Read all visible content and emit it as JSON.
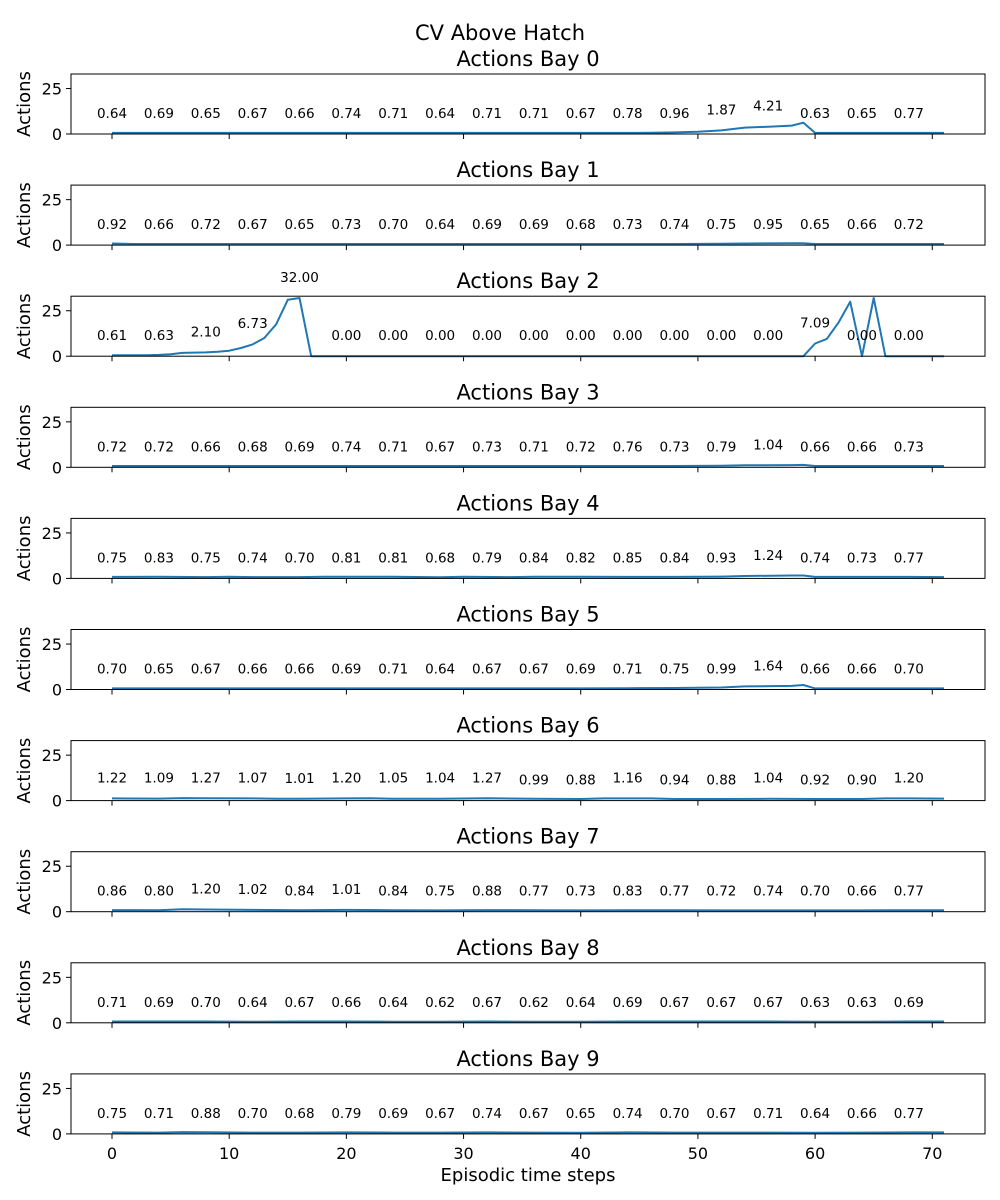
{
  "chart_data": {
    "type": "line",
    "title": "CV Above Hatch",
    "xlabel": "Episodic time steps",
    "ylabel": "Actions",
    "xlim": [
      -3.5,
      74.5
    ],
    "ylim": [
      0,
      33
    ],
    "xticks": [
      0,
      10,
      20,
      30,
      40,
      50,
      60,
      70
    ],
    "yticks": [
      0,
      25
    ],
    "annotation_x": [
      0,
      4,
      8,
      12,
      16,
      20,
      24,
      28,
      32,
      36,
      40,
      44,
      48,
      52,
      56,
      60,
      64,
      68
    ],
    "color": "#1f77b4",
    "panels": [
      {
        "title": "Actions Bay 0",
        "annotations": [
          "0.64",
          "0.69",
          "0.65",
          "0.67",
          "0.66",
          "0.74",
          "0.71",
          "0.64",
          "0.71",
          "0.71",
          "0.67",
          "0.78",
          "0.96",
          "1.87",
          "4.21",
          "0.63",
          "0.65",
          "0.77"
        ],
        "points": [
          [
            0,
            0.6
          ],
          [
            4,
            0.6
          ],
          [
            8,
            0.6
          ],
          [
            12,
            0.6
          ],
          [
            16,
            0.6
          ],
          [
            20,
            0.6
          ],
          [
            24,
            0.6
          ],
          [
            28,
            0.6
          ],
          [
            32,
            0.6
          ],
          [
            36,
            0.6
          ],
          [
            40,
            0.6
          ],
          [
            44,
            0.6
          ],
          [
            46,
            0.7
          ],
          [
            48,
            0.9
          ],
          [
            50,
            1.2
          ],
          [
            52,
            2.0
          ],
          [
            54,
            3.5
          ],
          [
            56,
            4.0
          ],
          [
            58,
            4.6
          ],
          [
            59,
            6.2
          ],
          [
            60,
            0.6
          ],
          [
            64,
            0.6
          ],
          [
            68,
            0.6
          ],
          [
            71,
            0.6
          ]
        ]
      },
      {
        "title": "Actions Bay 1",
        "annotations": [
          "0.92",
          "0.66",
          "0.72",
          "0.67",
          "0.65",
          "0.73",
          "0.70",
          "0.64",
          "0.69",
          "0.69",
          "0.68",
          "0.73",
          "0.74",
          "0.75",
          "0.95",
          "0.65",
          "0.66",
          "0.72"
        ],
        "points": [
          [
            0,
            0.9
          ],
          [
            2,
            0.6
          ],
          [
            4,
            0.6
          ],
          [
            8,
            0.6
          ],
          [
            12,
            0.6
          ],
          [
            16,
            0.6
          ],
          [
            20,
            0.6
          ],
          [
            24,
            0.6
          ],
          [
            28,
            0.6
          ],
          [
            32,
            0.6
          ],
          [
            36,
            0.6
          ],
          [
            40,
            0.6
          ],
          [
            44,
            0.6
          ],
          [
            48,
            0.6
          ],
          [
            52,
            0.7
          ],
          [
            54,
            0.9
          ],
          [
            58,
            1.0
          ],
          [
            59,
            1.0
          ],
          [
            60,
            0.6
          ],
          [
            64,
            0.6
          ],
          [
            68,
            0.6
          ],
          [
            71,
            0.6
          ]
        ]
      },
      {
        "title": "Actions Bay 2",
        "annotations": [
          "0.61",
          "0.63",
          "2.10",
          "6.73",
          "32.00",
          "0.00",
          "0.00",
          "0.00",
          "0.00",
          "0.00",
          "0.00",
          "0.00",
          "0.00",
          "0.00",
          "0.00",
          "7.09",
          "0.00",
          "0.00"
        ],
        "points": [
          [
            0,
            0.5
          ],
          [
            2,
            0.5
          ],
          [
            3,
            0.5
          ],
          [
            4,
            0.7
          ],
          [
            5,
            1.1
          ],
          [
            6,
            1.8
          ],
          [
            8,
            2.1
          ],
          [
            9,
            2.4
          ],
          [
            10,
            3.0
          ],
          [
            11,
            4.5
          ],
          [
            12,
            6.5
          ],
          [
            13,
            10
          ],
          [
            14,
            17.5
          ],
          [
            15,
            31
          ],
          [
            16,
            32
          ],
          [
            17,
            0
          ],
          [
            20,
            0
          ],
          [
            24,
            0
          ],
          [
            28,
            0
          ],
          [
            32,
            0
          ],
          [
            36,
            0
          ],
          [
            40,
            0
          ],
          [
            44,
            0
          ],
          [
            48,
            0
          ],
          [
            52,
            0
          ],
          [
            56,
            0
          ],
          [
            59,
            0
          ],
          [
            60,
            7
          ],
          [
            61,
            9.5
          ],
          [
            62,
            18.5
          ],
          [
            63,
            30
          ],
          [
            64,
            0
          ],
          [
            65,
            32
          ],
          [
            66,
            0
          ],
          [
            68,
            0
          ],
          [
            71,
            0
          ]
        ]
      },
      {
        "title": "Actions Bay 3",
        "annotations": [
          "0.72",
          "0.72",
          "0.66",
          "0.68",
          "0.69",
          "0.74",
          "0.71",
          "0.67",
          "0.73",
          "0.71",
          "0.72",
          "0.76",
          "0.73",
          "0.79",
          "1.04",
          "0.66",
          "0.66",
          "0.73"
        ],
        "points": [
          [
            0,
            0.7
          ],
          [
            4,
            0.7
          ],
          [
            8,
            0.7
          ],
          [
            12,
            0.7
          ],
          [
            16,
            0.7
          ],
          [
            20,
            0.7
          ],
          [
            24,
            0.7
          ],
          [
            28,
            0.7
          ],
          [
            32,
            0.7
          ],
          [
            36,
            0.7
          ],
          [
            40,
            0.7
          ],
          [
            44,
            0.7
          ],
          [
            48,
            0.7
          ],
          [
            52,
            0.8
          ],
          [
            54,
            1.1
          ],
          [
            58,
            1.2
          ],
          [
            59,
            1.3
          ],
          [
            60,
            0.7
          ],
          [
            64,
            0.7
          ],
          [
            68,
            0.7
          ],
          [
            71,
            0.7
          ]
        ]
      },
      {
        "title": "Actions Bay 4",
        "annotations": [
          "0.75",
          "0.83",
          "0.75",
          "0.74",
          "0.70",
          "0.81",
          "0.81",
          "0.68",
          "0.79",
          "0.84",
          "0.82",
          "0.85",
          "0.84",
          "0.93",
          "1.24",
          "0.74",
          "0.73",
          "0.77"
        ],
        "points": [
          [
            0,
            0.8
          ],
          [
            4,
            0.9
          ],
          [
            8,
            0.7
          ],
          [
            10,
            0.9
          ],
          [
            12,
            0.7
          ],
          [
            16,
            0.7
          ],
          [
            18,
            0.9
          ],
          [
            24,
            0.9
          ],
          [
            28,
            0.6
          ],
          [
            30,
            0.9
          ],
          [
            34,
            0.7
          ],
          [
            36,
            0.9
          ],
          [
            40,
            0.9
          ],
          [
            44,
            0.8
          ],
          [
            48,
            0.8
          ],
          [
            52,
            1.0
          ],
          [
            54,
            1.3
          ],
          [
            58,
            1.6
          ],
          [
            59,
            1.6
          ],
          [
            60,
            0.8
          ],
          [
            64,
            0.8
          ],
          [
            68,
            0.8
          ],
          [
            71,
            0.7
          ]
        ]
      },
      {
        "title": "Actions Bay 5",
        "annotations": [
          "0.70",
          "0.65",
          "0.67",
          "0.66",
          "0.66",
          "0.69",
          "0.71",
          "0.64",
          "0.67",
          "0.67",
          "0.69",
          "0.71",
          "0.75",
          "0.99",
          "1.64",
          "0.66",
          "0.66",
          "0.70"
        ],
        "points": [
          [
            0,
            0.6
          ],
          [
            4,
            0.6
          ],
          [
            8,
            0.6
          ],
          [
            12,
            0.6
          ],
          [
            16,
            0.6
          ],
          [
            20,
            0.6
          ],
          [
            24,
            0.6
          ],
          [
            28,
            0.6
          ],
          [
            32,
            0.6
          ],
          [
            36,
            0.6
          ],
          [
            40,
            0.6
          ],
          [
            44,
            0.7
          ],
          [
            48,
            0.8
          ],
          [
            52,
            1.1
          ],
          [
            54,
            1.7
          ],
          [
            58,
            2.0
          ],
          [
            59,
            2.5
          ],
          [
            60,
            0.6
          ],
          [
            64,
            0.6
          ],
          [
            68,
            0.6
          ],
          [
            71,
            0.6
          ]
        ]
      },
      {
        "title": "Actions Bay 6",
        "annotations": [
          "1.22",
          "1.09",
          "1.27",
          "1.07",
          "1.01",
          "1.20",
          "1.05",
          "1.04",
          "1.27",
          "0.99",
          "0.88",
          "1.16",
          "0.94",
          "0.88",
          "1.04",
          "0.92",
          "0.90",
          "1.20"
        ],
        "points": [
          [
            0,
            1.2
          ],
          [
            4,
            1.1
          ],
          [
            6,
            1.4
          ],
          [
            8,
            1.3
          ],
          [
            12,
            1.2
          ],
          [
            14,
            1.0
          ],
          [
            16,
            1.0
          ],
          [
            20,
            1.2
          ],
          [
            22,
            1.3
          ],
          [
            24,
            1.0
          ],
          [
            28,
            1.0
          ],
          [
            32,
            1.3
          ],
          [
            36,
            1.0
          ],
          [
            40,
            0.9
          ],
          [
            42,
            1.2
          ],
          [
            46,
            1.2
          ],
          [
            48,
            0.9
          ],
          [
            52,
            0.9
          ],
          [
            56,
            1.0
          ],
          [
            60,
            0.9
          ],
          [
            64,
            0.9
          ],
          [
            66,
            1.2
          ],
          [
            68,
            1.2
          ],
          [
            71,
            1.1
          ]
        ]
      },
      {
        "title": "Actions Bay 7",
        "annotations": [
          "0.86",
          "0.80",
          "1.20",
          "1.02",
          "0.84",
          "1.01",
          "0.84",
          "0.75",
          "0.88",
          "0.77",
          "0.73",
          "0.83",
          "0.77",
          "0.72",
          "0.74",
          "0.70",
          "0.66",
          "0.77"
        ],
        "points": [
          [
            0,
            0.9
          ],
          [
            4,
            0.8
          ],
          [
            6,
            1.3
          ],
          [
            8,
            1.2
          ],
          [
            12,
            1.0
          ],
          [
            16,
            0.8
          ],
          [
            20,
            1.0
          ],
          [
            24,
            0.8
          ],
          [
            28,
            0.7
          ],
          [
            32,
            0.9
          ],
          [
            36,
            0.8
          ],
          [
            40,
            0.7
          ],
          [
            44,
            0.8
          ],
          [
            48,
            0.8
          ],
          [
            52,
            0.7
          ],
          [
            56,
            0.7
          ],
          [
            60,
            0.7
          ],
          [
            64,
            0.7
          ],
          [
            68,
            0.8
          ],
          [
            71,
            0.8
          ]
        ]
      },
      {
        "title": "Actions Bay 8",
        "annotations": [
          "0.71",
          "0.69",
          "0.70",
          "0.64",
          "0.67",
          "0.66",
          "0.64",
          "0.62",
          "0.67",
          "0.62",
          "0.64",
          "0.69",
          "0.67",
          "0.67",
          "0.67",
          "0.63",
          "0.63",
          "0.69"
        ],
        "points": [
          [
            0,
            0.7
          ],
          [
            4,
            0.7
          ],
          [
            8,
            0.7
          ],
          [
            12,
            0.6
          ],
          [
            16,
            0.7
          ],
          [
            20,
            0.7
          ],
          [
            24,
            0.6
          ],
          [
            28,
            0.6
          ],
          [
            32,
            0.7
          ],
          [
            36,
            0.6
          ],
          [
            40,
            0.6
          ],
          [
            44,
            0.7
          ],
          [
            48,
            0.7
          ],
          [
            52,
            0.7
          ],
          [
            56,
            0.7
          ],
          [
            60,
            0.6
          ],
          [
            64,
            0.6
          ],
          [
            68,
            0.7
          ],
          [
            71,
            0.7
          ]
        ]
      },
      {
        "title": "Actions Bay 9",
        "annotations": [
          "0.75",
          "0.71",
          "0.88",
          "0.70",
          "0.68",
          "0.79",
          "0.69",
          "0.67",
          "0.74",
          "0.67",
          "0.65",
          "0.74",
          "0.70",
          "0.67",
          "0.71",
          "0.64",
          "0.66",
          "0.77"
        ],
        "points": [
          [
            0,
            0.8
          ],
          [
            4,
            0.7
          ],
          [
            6,
            1.0
          ],
          [
            8,
            0.9
          ],
          [
            12,
            0.7
          ],
          [
            16,
            0.7
          ],
          [
            20,
            0.8
          ],
          [
            24,
            0.7
          ],
          [
            28,
            0.7
          ],
          [
            32,
            0.8
          ],
          [
            36,
            0.7
          ],
          [
            40,
            0.6
          ],
          [
            44,
            0.8
          ],
          [
            48,
            0.7
          ],
          [
            52,
            0.7
          ],
          [
            56,
            0.7
          ],
          [
            60,
            0.6
          ],
          [
            64,
            0.7
          ],
          [
            68,
            0.8
          ],
          [
            71,
            0.8
          ]
        ]
      }
    ]
  }
}
